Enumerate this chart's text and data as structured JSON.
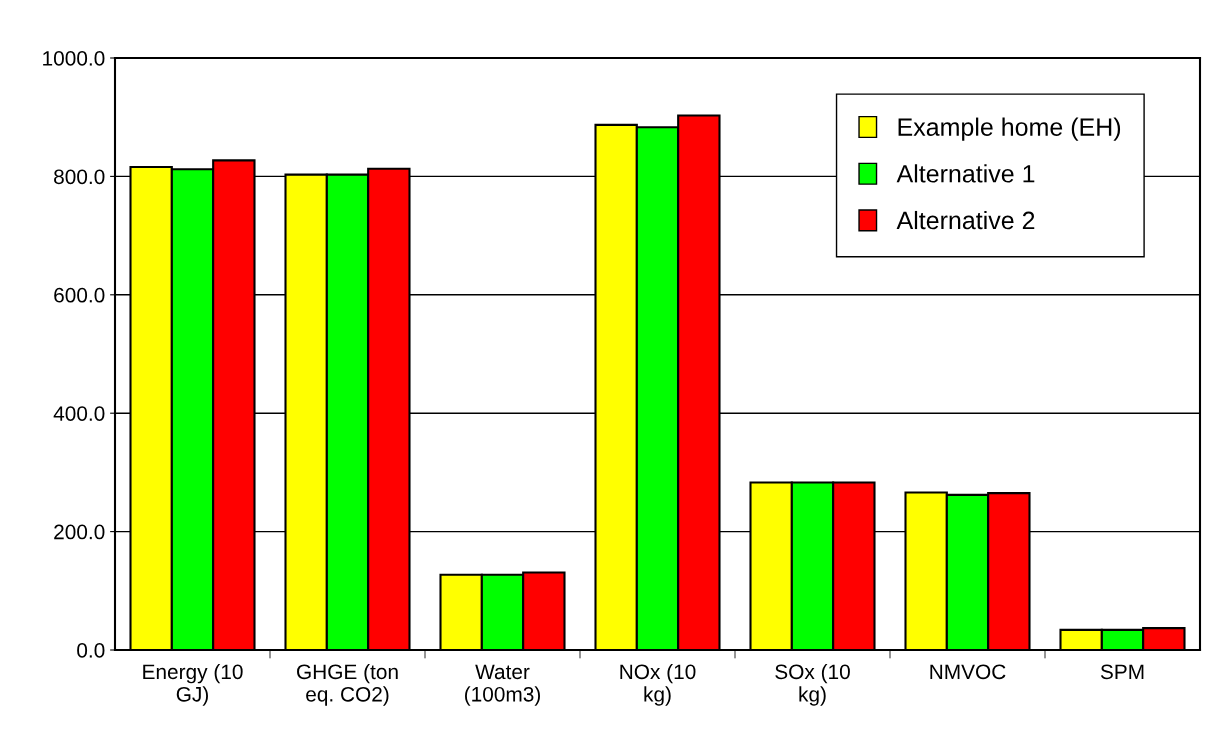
{
  "chart_data": {
    "type": "bar",
    "categories": [
      "Energy (10\nGJ)",
      "GHGE (ton\neq. CO2)",
      "Water\n(100m3)",
      "NOx (10\nkg)",
      "SOx (10\nkg)",
      "NMVOC",
      "SPM"
    ],
    "series": [
      {
        "name": "Example home (EH)",
        "color": "#ffff00",
        "values": [
          816,
          803,
          127,
          887,
          283,
          266,
          34
        ]
      },
      {
        "name": "Alternative 1",
        "color": "#00ff00",
        "values": [
          812,
          803,
          127,
          883,
          283,
          262,
          34
        ]
      },
      {
        "name": "Alternative 2",
        "color": "#ff0000",
        "values": [
          827,
          813,
          131,
          903,
          283,
          265,
          37
        ]
      }
    ],
    "ylim": [
      0,
      1000
    ],
    "yticks": [
      {
        "value": 0,
        "label": "0.0"
      },
      {
        "value": 200,
        "label": "200.0"
      },
      {
        "value": 400,
        "label": "400.0"
      },
      {
        "value": 600,
        "label": "600.0"
      },
      {
        "value": 800,
        "label": "800.0"
      },
      {
        "value": 1000,
        "label": "1000.0"
      }
    ],
    "grid": "y",
    "legend": "top right"
  }
}
